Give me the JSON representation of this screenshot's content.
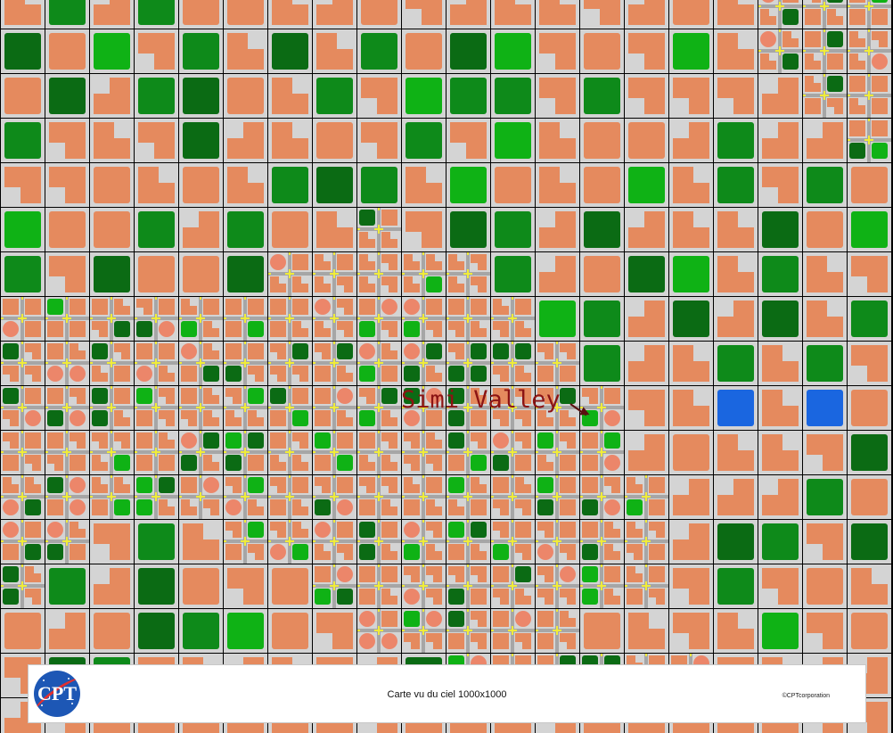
{
  "map": {
    "city_label": "Simi Valley",
    "palette": {
      "grid": "#000000",
      "ground": "#d4d4d4",
      "residential": "#e58a5e",
      "forest_dark": "#0b6b14",
      "forest": "#0e8a1a",
      "grass": "#0fb215",
      "water": "#1a66e0",
      "road": "#a6a6a6",
      "road_marking": "#f0ec3a"
    }
  },
  "footer": {
    "title": "Carte vu du ciel 1000x1000",
    "copyright": "©CPTcorporation",
    "logo_text": "CPT"
  }
}
